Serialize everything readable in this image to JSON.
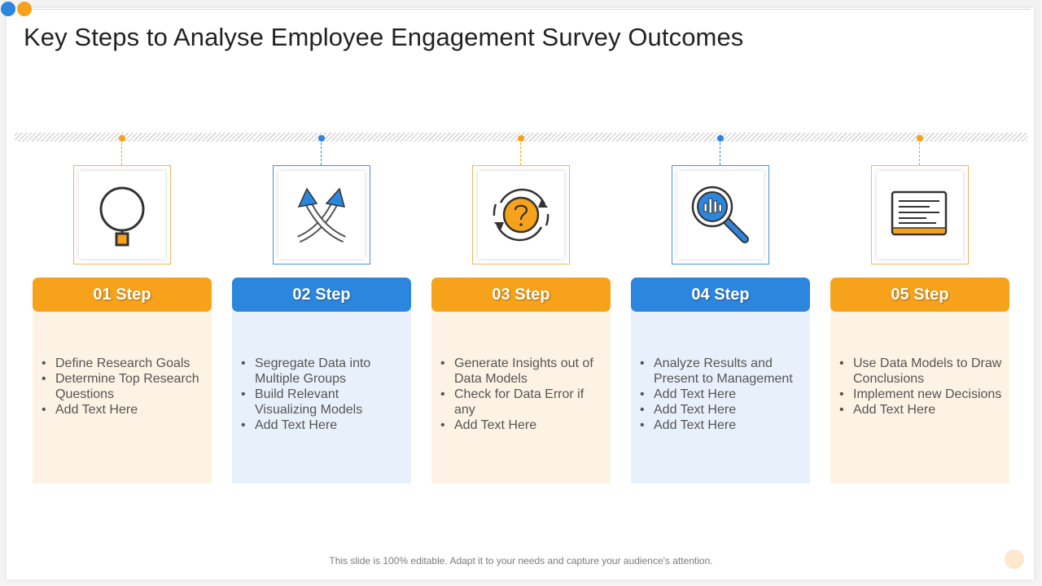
{
  "title": "Key Steps to Analyse Employee Engagement Survey Outcomes",
  "footer": "This slide is 100% editable. Adapt it to your needs and capture your audience's attention.",
  "colors": {
    "orange": "#f7a21b",
    "blue": "#2d86de",
    "orange_bg": "#fdf3e4",
    "blue_bg": "#e8f1fb"
  },
  "steps": [
    {
      "label": "01 Step",
      "icon": "magnifier-icon",
      "bullets": [
        "Define Research Goals",
        "Determine Top Research Questions",
        "Add Text Here"
      ]
    },
    {
      "label": "02 Step",
      "icon": "crossed-arrows-icon",
      "bullets": [
        "Segregate Data into Multiple Groups",
        "Build Relevant Visualizing Models",
        "Add Text Here"
      ]
    },
    {
      "label": "03 Step",
      "icon": "question-cycle-icon",
      "bullets": [
        "Generate Insights out of Data Models",
        "Check for Data Error if any",
        "Add Text Here"
      ]
    },
    {
      "label": "04 Step",
      "icon": "magnifier-chart-icon",
      "bullets": [
        "Analyze Results and Present to Management",
        "Add Text Here",
        "Add Text Here",
        "Add Text Here"
      ]
    },
    {
      "label": "05 Step",
      "icon": "document-icon",
      "bullets": [
        "Use Data Models to Draw Conclusions",
        "Implement new Decisions",
        "Add Text Here"
      ]
    }
  ]
}
